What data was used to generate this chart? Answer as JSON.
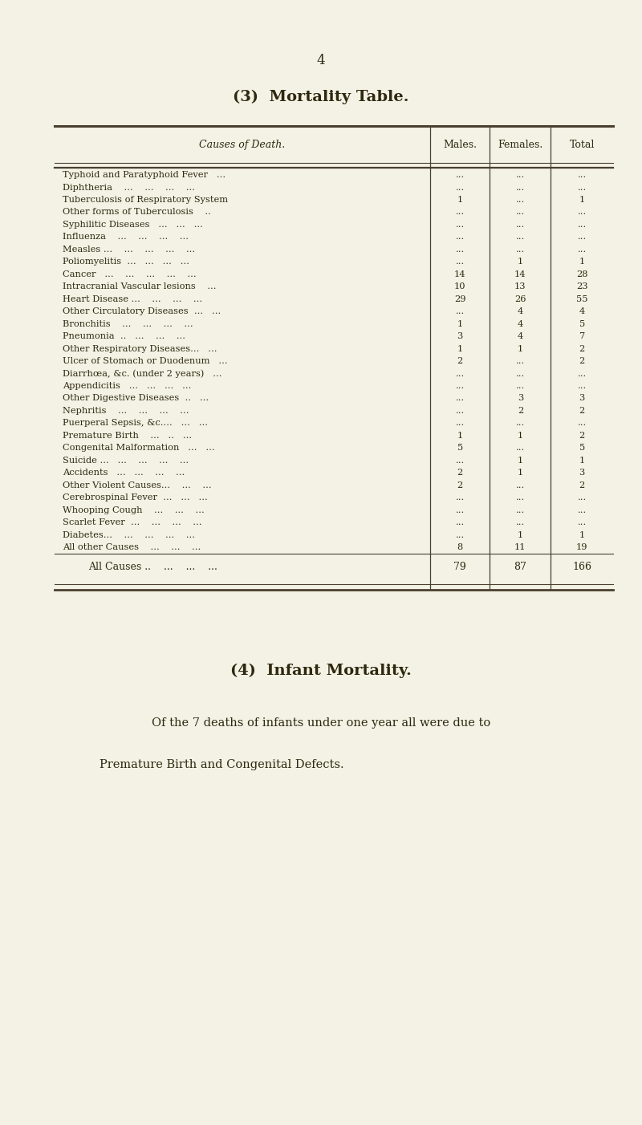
{
  "page_number": "4",
  "title": "(3)  Mortality Table.",
  "subtitle4": "(4)  Infant Mortality.",
  "infant_mortality_line1": "Of the 7 deaths of infants under one year all were due to",
  "infant_mortality_line2": "Premature Birth and Congenital Defects.",
  "header": [
    "Causes of Death.",
    "Males.",
    "Females.",
    "Total"
  ],
  "col_header_label": "Causes of Death.",
  "rows": [
    [
      "Typhoid and Paratyphoid Fever   ...",
      "...",
      "...",
      "..."
    ],
    [
      "Diphtheria    ...    ...    ...    ...",
      "...",
      "...",
      "..."
    ],
    [
      "Tuberculosis of Respiratory System",
      "1",
      "...",
      "1"
    ],
    [
      "Other forms of Tuberculosis    ..",
      "...",
      "...",
      "..."
    ],
    [
      "Syphilitic Diseases   ...   ...   ...",
      "...",
      "...",
      "..."
    ],
    [
      "Influenza    ...    ...    ...    ...",
      "...",
      "...",
      "..."
    ],
    [
      "Measles ...    ...    ...    ...    ...",
      "...",
      "...",
      "..."
    ],
    [
      "Poliomyelitis  ...   ...   ...   ...",
      "...",
      "1",
      "1"
    ],
    [
      "Cancer   ...    ...    ...    ...    ...",
      "14",
      "14",
      "28"
    ],
    [
      "Intracranial Vascular lesions    ...",
      "10",
      "13",
      "23"
    ],
    [
      "Heart Disease ...    ...    ...    ...",
      "29",
      "26",
      "55"
    ],
    [
      "Other Circulatory Diseases  ...   ...",
      "...",
      "4",
      "4"
    ],
    [
      "Bronchitis    ...    ...    ...    ...",
      "1",
      "4",
      "5"
    ],
    [
      "Pneumonia  ..   ...    ...    ...",
      "3",
      "4",
      "7"
    ],
    [
      "Other Respiratory Diseases...   ...",
      "1",
      "1",
      "2"
    ],
    [
      "Ulcer of Stomach or Duodenum   ...",
      "2",
      "...",
      "2"
    ],
    [
      "Diarrhœa, &c. (under 2 years)   ...",
      "...",
      "...",
      "..."
    ],
    [
      "Appendicitis   ...   ...   ...   ...",
      "...",
      "...",
      "..."
    ],
    [
      "Other Digestive Diseases  ..   ...",
      "...",
      "3",
      "3"
    ],
    [
      "Nephritis    ...    ...    ...    ...",
      "...",
      "2",
      "2"
    ],
    [
      "Puerperal Sepsis, &c....   ...   ...",
      "...",
      "...",
      "..."
    ],
    [
      "Premature Birth    ...   ..   ...",
      "1",
      "1",
      "2"
    ],
    [
      "Congenital Malformation   ...   ...",
      "5",
      "...",
      "5"
    ],
    [
      "Suicide ...   ...    ...    ...    ...",
      "...",
      "1",
      "1"
    ],
    [
      "Accidents   ...   ...    ...    ...",
      "2",
      "1",
      "3"
    ],
    [
      "Other Violent Causes...    ...    ...",
      "2",
      "...",
      "2"
    ],
    [
      "Cerebrospinal Fever  ...   ...   ...",
      "...",
      "...",
      "..."
    ],
    [
      "Whooping Cough    ...    ...    ...",
      "...",
      "...",
      "..."
    ],
    [
      "Scarlet Fever  ...    ...    ...    ...",
      "...",
      "...",
      "..."
    ],
    [
      "Diabetes...    ...    ...    ...    ...",
      "...",
      "1",
      "1"
    ],
    [
      "All other Causes    ...    ...    ...",
      "8",
      "11",
      "19"
    ]
  ],
  "totals_row": [
    "All Causes ..    ...    ...    ...",
    "79",
    "87",
    "166"
  ],
  "bg_color": "#f3f2e4",
  "text_color": "#2e2810",
  "line_color": "#4a4030"
}
